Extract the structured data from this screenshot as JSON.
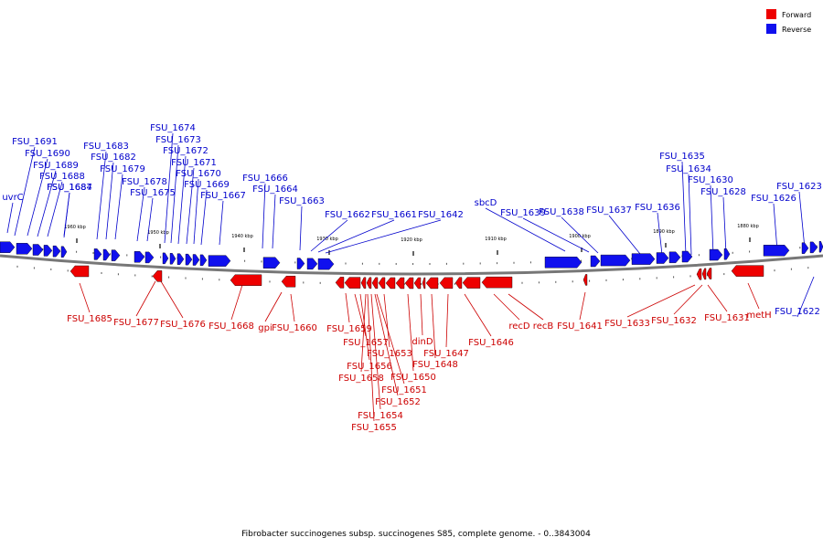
{
  "legend": {
    "forward": {
      "label": "Forward",
      "color": "#ee0000"
    },
    "reverse": {
      "label": "Reverse",
      "color": "#1010ee"
    }
  },
  "caption": "Fibrobacter succinogenes subsp. succinogenes S85, complete genome. - 0..3843004",
  "colors": {
    "forward_label": "#cc0000",
    "reverse_label": "#0000cc",
    "backbone": "#777777"
  },
  "scale_labels": [
    "1960 kbp",
    "1950 kbp",
    "1940 kbp",
    "1930 kbp",
    "1920 kbp",
    "1910 kbp",
    "1900 kbp",
    "1890 kbp",
    "1880 kbp"
  ],
  "reverse_genes": [
    "uvrC",
    "FSU_1691",
    "FSU_1690",
    "FSU_1689",
    "FSU_1688",
    "FSU_1687",
    "FSU_1684",
    "FSU_1683",
    "FSU_1682",
    "FSU_1679",
    "FSU_1678",
    "FSU_1675",
    "FSU_1674",
    "FSU_1673",
    "FSU_1672",
    "FSU_1671",
    "FSU_1670",
    "FSU_1669",
    "FSU_1667",
    "FSU_1666",
    "FSU_1664",
    "FSU_1663",
    "FSU_1662",
    "FSU_1661",
    "FSU_1642",
    "sbcD",
    "FSU_1639",
    "FSU_1638",
    "FSU_1637",
    "FSU_1636",
    "FSU_1635",
    "FSU_1634",
    "FSU_1630",
    "FSU_1628",
    "FSU_1626",
    "FSU_1623",
    "FSU_1622"
  ],
  "forward_genes": [
    "FSU_1685",
    "FSU_1677",
    "FSU_1676",
    "FSU_1668",
    "gpi",
    "FSU_1660",
    "FSU_1659",
    "FSU_1657",
    "FSU_1656",
    "FSU_1658",
    "FSU_1653",
    "dinD",
    "FSU_1650",
    "FSU_1651",
    "FSU_1652",
    "FSU_1654",
    "FSU_1655",
    "FSU_1647",
    "FSU_1648",
    "FSU_1646",
    "recD",
    "recB",
    "FSU_1641",
    "FSU_1633",
    "FSU_1632",
    "FSU_1631",
    "metH"
  ]
}
